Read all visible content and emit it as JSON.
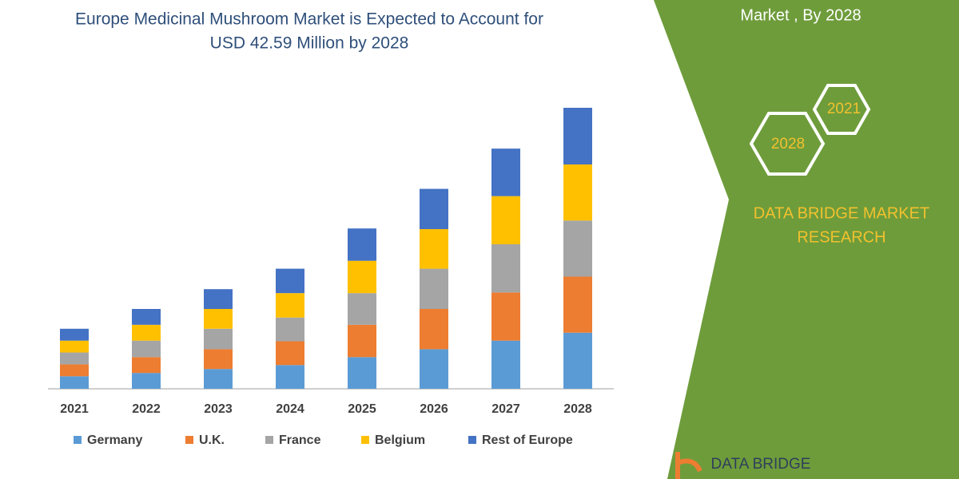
{
  "chart_data": {
    "type": "stacked_bar",
    "title": [
      "Europe Medicinal Mushroom Market is Expected to Account for",
      "USD 42.59 Million by 2028"
    ],
    "categories": [
      "2021",
      "2022",
      "2023",
      "2024",
      "2025",
      "2026",
      "2027",
      "2028"
    ],
    "series": [
      {
        "name": "Germany",
        "color": "#5b9bd5",
        "values": [
          1.9,
          2.4,
          3.0,
          3.6,
          4.8,
          6.0,
          7.3,
          8.5
        ]
      },
      {
        "name": "U.K.",
        "color": "#ed7d31",
        "values": [
          1.8,
          2.4,
          3.0,
          3.6,
          4.9,
          6.1,
          7.3,
          8.5
        ]
      },
      {
        "name": "France",
        "color": "#a5a5a5",
        "values": [
          1.8,
          2.5,
          3.1,
          3.6,
          4.8,
          6.1,
          7.3,
          8.5
        ]
      },
      {
        "name": "Belgium",
        "color": "#ffc000",
        "values": [
          1.8,
          2.4,
          3.0,
          3.7,
          4.9,
          6.0,
          7.3,
          8.5
        ]
      },
      {
        "name": "Rest of Europe",
        "color": "#4472c4",
        "values": [
          1.8,
          2.4,
          3.0,
          3.7,
          4.9,
          6.1,
          7.2,
          8.59
        ]
      }
    ],
    "legend": "bottom"
  },
  "side_panel": {
    "heading": "Market , By 2028",
    "hexagons": [
      "2021",
      "2028"
    ],
    "brand": [
      "DATA BRIDGE MARKET",
      "RESEARCH"
    ],
    "logo": "DATA BRIDGE"
  }
}
